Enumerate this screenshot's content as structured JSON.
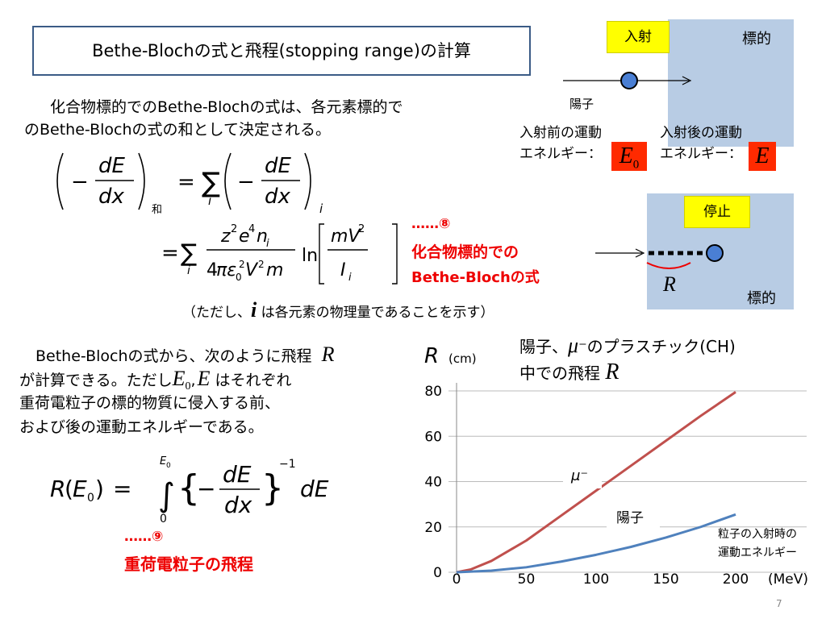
{
  "slide": {
    "title": "Bethe-Blochの式と飛程(stopping  range)の計算",
    "intro_line1": "化合物標的でのBethe-Blochの式は、各元素標的で",
    "intro_line2": "のBethe-Blochの式の和として決定される。",
    "note": "（ただし、",
    "note_var": "i",
    "note_rest": " は各元素の物理量であることを示す）",
    "eq8_ref": "……⑧",
    "eq8_label1": "化合物標的での",
    "eq8_label2": "Bethe-Blochの式",
    "range_line1": "Bethe-Blochの式から、次のように飛程",
    "range_line2a": "が計算できる。ただし",
    "range_line2b": "はそれぞれ",
    "range_line3": "重荷電粒子の標的物質に侵入する前、",
    "range_line4": "および後の運動エネルギーである。",
    "eq9_ref": "……⑨",
    "eq9_label": "重荷電粒子の飛程",
    "page_number": "7"
  },
  "math": {
    "sum_sub": "和",
    "R": "R",
    "E0": "E",
    "E0_sub": "0",
    "E": "E",
    "comma": ","
  },
  "diagram_top": {
    "incident_label": "入射",
    "target_label": "標的",
    "proton_label": "陽子",
    "before_line1": "入射前の運動",
    "before_line2": "エネルギー：",
    "after_line1": "入射後の運動",
    "after_line2": "エネルギー：",
    "colors": {
      "target": "#b8cce4",
      "label_bg": "#ffff00",
      "energy_bg": "#ff2a00",
      "proton": "#4a7fd4"
    }
  },
  "diagram_bottom": {
    "stop_label": "停止",
    "target_label": "標的",
    "range_symbol": "R"
  },
  "chart_data": {
    "type": "line",
    "title_line1": "陽子、",
    "title_mu": "μ",
    "title_line1b": "⁻のプラスチック(CH)",
    "title_line2": "中での飛程",
    "title_R": "R",
    "ylabel": "R",
    "ylabel_unit": "(cm)",
    "xlabel": "粒子の入射時の運動エネルギー",
    "xlabel_line1": "粒子の入射時の",
    "xlabel_line2": "運動エネルギー",
    "x_unit": "(MeV)",
    "xlim": [
      0,
      200
    ],
    "ylim": [
      0,
      80
    ],
    "x_ticks": [
      "0",
      "50",
      "100",
      "150",
      "200"
    ],
    "y_ticks": [
      "0",
      "20",
      "40",
      "60",
      "80"
    ],
    "grid": true,
    "series": [
      {
        "name": "μ⁻",
        "color": "#c0504d",
        "x": [
          0,
          10,
          25,
          50,
          75,
          100,
          125,
          150,
          175,
          200
        ],
        "y": [
          0,
          1.2,
          5,
          14,
          25,
          36,
          47,
          58,
          69,
          79.5
        ]
      },
      {
        "name": "陽子",
        "color": "#4f81bd",
        "x": [
          0,
          25,
          50,
          75,
          100,
          125,
          150,
          175,
          200
        ],
        "y": [
          0,
          0.7,
          2.2,
          4.7,
          7.7,
          11.2,
          15.3,
          20,
          25.5
        ]
      }
    ]
  }
}
